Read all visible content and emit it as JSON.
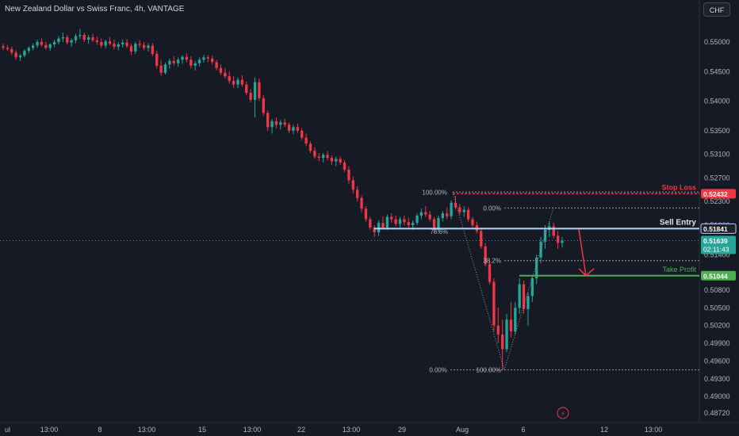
{
  "header": {
    "title": "New Zealand Dollar vs Swiss Franc, 4h, VANTAGE",
    "currency_button": "CHF"
  },
  "chart_data": {
    "type": "candlestick",
    "ylim": [
      0.4865,
      0.5546
    ],
    "y_ticks": [
      "0.55000",
      "0.54500",
      "0.54000",
      "0.53500",
      "0.53100",
      "0.52700",
      "0.52300",
      "0.51900",
      "0.51400",
      "0.50800",
      "0.50500",
      "0.50200",
      "0.49900",
      "0.49600",
      "0.49300",
      "0.49000",
      "0.48720"
    ],
    "x_ticks": [
      "ul",
      "13:00",
      "8",
      "13:00",
      "15",
      "13:00",
      "22",
      "13:00",
      "29",
      "Aug",
      "6",
      "12",
      "13:00"
    ],
    "price_labels": {
      "stop_loss": "0.52432",
      "sell_entry": "0.51841",
      "current": "0.51639",
      "countdown": "02:11:43",
      "take_profit": "0.51044"
    },
    "annotations": {
      "stop_loss": "Stop Loss",
      "sell_entry": "Sell Entry",
      "take_profit": "Take Profit"
    },
    "levels": {
      "stop_loss": 0.52432,
      "sell_entry": 0.51841,
      "current": 0.51639,
      "take_profit": 0.51044
    },
    "fib_upper": {
      "labels": [
        "100.00%",
        "0.00%",
        "78.6%"
      ],
      "high": 0.5246,
      "low": 0.4945
    },
    "fib_lower": {
      "labels": [
        "38.2%",
        "0.00%",
        "100.00%"
      ]
    },
    "colors": {
      "up": "#26a69a",
      "down": "#f23645",
      "entry": "#b2d5ff",
      "take_profit": "#4caf50",
      "background": "#161a25"
    },
    "candles": [
      [
        0.5493,
        0.5497,
        0.5486,
        0.549
      ],
      [
        0.549,
        0.5495,
        0.5485,
        0.5488
      ],
      [
        0.5488,
        0.5492,
        0.5478,
        0.5482
      ],
      [
        0.5482,
        0.5486,
        0.547,
        0.5474
      ],
      [
        0.5474,
        0.548,
        0.5468,
        0.5477
      ],
      [
        0.5477,
        0.5488,
        0.5474,
        0.5485
      ],
      [
        0.5485,
        0.5493,
        0.5481,
        0.549
      ],
      [
        0.549,
        0.5498,
        0.5486,
        0.5494
      ],
      [
        0.5494,
        0.5504,
        0.549,
        0.55
      ],
      [
        0.55,
        0.5506,
        0.5492,
        0.5495
      ],
      [
        0.5495,
        0.55,
        0.5487,
        0.549
      ],
      [
        0.549,
        0.5498,
        0.5485,
        0.5496
      ],
      [
        0.5496,
        0.5504,
        0.5491,
        0.55
      ],
      [
        0.55,
        0.551,
        0.5496,
        0.5506
      ],
      [
        0.5506,
        0.5516,
        0.55,
        0.5508
      ],
      [
        0.5508,
        0.5512,
        0.5496,
        0.5499
      ],
      [
        0.5499,
        0.5506,
        0.5492,
        0.5503
      ],
      [
        0.5503,
        0.5514,
        0.5498,
        0.551
      ],
      [
        0.551,
        0.5522,
        0.5505,
        0.5512
      ],
      [
        0.5512,
        0.5516,
        0.55,
        0.5504
      ],
      [
        0.5504,
        0.5512,
        0.5497,
        0.5508
      ],
      [
        0.5508,
        0.5514,
        0.55,
        0.5503
      ],
      [
        0.5503,
        0.5509,
        0.5495,
        0.55
      ],
      [
        0.55,
        0.5506,
        0.549,
        0.5494
      ],
      [
        0.5494,
        0.5504,
        0.5489,
        0.5501
      ],
      [
        0.5501,
        0.5508,
        0.5494,
        0.5497
      ],
      [
        0.5497,
        0.5504,
        0.5488,
        0.5492
      ],
      [
        0.5492,
        0.55,
        0.5486,
        0.5496
      ],
      [
        0.5496,
        0.5504,
        0.5491,
        0.5499
      ],
      [
        0.5499,
        0.5505,
        0.549,
        0.5493
      ],
      [
        0.5493,
        0.5497,
        0.5478,
        0.5484
      ],
      [
        0.5484,
        0.55,
        0.548,
        0.5497
      ],
      [
        0.5497,
        0.5503,
        0.549,
        0.5495
      ],
      [
        0.5495,
        0.55,
        0.5486,
        0.549
      ],
      [
        0.549,
        0.5498,
        0.5484,
        0.5494
      ],
      [
        0.5494,
        0.5498,
        0.5476,
        0.548
      ],
      [
        0.548,
        0.5485,
        0.5455,
        0.546
      ],
      [
        0.546,
        0.547,
        0.5443,
        0.5448
      ],
      [
        0.5448,
        0.5465,
        0.5445,
        0.5462
      ],
      [
        0.5462,
        0.5472,
        0.5455,
        0.5468
      ],
      [
        0.5468,
        0.5476,
        0.546,
        0.5464
      ],
      [
        0.5464,
        0.5474,
        0.5458,
        0.547
      ],
      [
        0.547,
        0.5478,
        0.5463,
        0.5475
      ],
      [
        0.5475,
        0.5481,
        0.5466,
        0.547
      ],
      [
        0.547,
        0.5476,
        0.5455,
        0.546
      ],
      [
        0.546,
        0.5468,
        0.5452,
        0.5464
      ],
      [
        0.5464,
        0.5474,
        0.5459,
        0.547
      ],
      [
        0.547,
        0.5478,
        0.5465,
        0.5474
      ],
      [
        0.5474,
        0.5478,
        0.5466,
        0.5472
      ],
      [
        0.5472,
        0.5477,
        0.5462,
        0.5466
      ],
      [
        0.5466,
        0.547,
        0.5452,
        0.5456
      ],
      [
        0.5456,
        0.5462,
        0.5444,
        0.5448
      ],
      [
        0.5448,
        0.5456,
        0.5438,
        0.5442
      ],
      [
        0.5442,
        0.545,
        0.543,
        0.5434
      ],
      [
        0.5434,
        0.5442,
        0.5422,
        0.5428
      ],
      [
        0.5428,
        0.544,
        0.5422,
        0.5436
      ],
      [
        0.5436,
        0.5444,
        0.5424,
        0.5428
      ],
      [
        0.5428,
        0.5433,
        0.541,
        0.5414
      ],
      [
        0.5414,
        0.542,
        0.5398,
        0.5402
      ],
      [
        0.5402,
        0.544,
        0.5372,
        0.5432
      ],
      [
        0.5432,
        0.5438,
        0.54,
        0.5405
      ],
      [
        0.5405,
        0.541,
        0.5375,
        0.538
      ],
      [
        0.538,
        0.5384,
        0.535,
        0.5356
      ],
      [
        0.5356,
        0.537,
        0.5345,
        0.5366
      ],
      [
        0.5366,
        0.5372,
        0.5354,
        0.536
      ],
      [
        0.536,
        0.5368,
        0.5352,
        0.5364
      ],
      [
        0.5364,
        0.537,
        0.5356,
        0.536
      ],
      [
        0.536,
        0.5364,
        0.5346,
        0.535
      ],
      [
        0.535,
        0.536,
        0.5344,
        0.5356
      ],
      [
        0.5356,
        0.5362,
        0.5346,
        0.535
      ],
      [
        0.535,
        0.5354,
        0.5334,
        0.5338
      ],
      [
        0.5338,
        0.5345,
        0.5324,
        0.5328
      ],
      [
        0.5328,
        0.5332,
        0.5312,
        0.5316
      ],
      [
        0.5316,
        0.5322,
        0.5302,
        0.5306
      ],
      [
        0.5306,
        0.5312,
        0.5298,
        0.5304
      ],
      [
        0.5304,
        0.5312,
        0.5296,
        0.5309
      ],
      [
        0.5309,
        0.5315,
        0.53,
        0.5304
      ],
      [
        0.5304,
        0.5308,
        0.5292,
        0.5298
      ],
      [
        0.5298,
        0.5306,
        0.529,
        0.5302
      ],
      [
        0.5302,
        0.5306,
        0.5292,
        0.5296
      ],
      [
        0.5296,
        0.53,
        0.528,
        0.5284
      ],
      [
        0.5284,
        0.529,
        0.526,
        0.5266
      ],
      [
        0.5266,
        0.5272,
        0.5244,
        0.525
      ],
      [
        0.525,
        0.5256,
        0.523,
        0.5236
      ],
      [
        0.5236,
        0.524,
        0.5212,
        0.5218
      ],
      [
        0.5218,
        0.5222,
        0.5196,
        0.52
      ],
      [
        0.52,
        0.5204,
        0.5182,
        0.5186
      ],
      [
        0.5186,
        0.519,
        0.517,
        0.5178
      ],
      [
        0.5178,
        0.5198,
        0.5172,
        0.5194
      ],
      [
        0.5194,
        0.5205,
        0.5182,
        0.5186
      ],
      [
        0.5186,
        0.5208,
        0.5182,
        0.5204
      ],
      [
        0.5204,
        0.521,
        0.5194,
        0.52
      ],
      [
        0.52,
        0.5206,
        0.5188,
        0.5192
      ],
      [
        0.5192,
        0.5204,
        0.5186,
        0.52
      ],
      [
        0.52,
        0.5206,
        0.519,
        0.5195
      ],
      [
        0.5195,
        0.5202,
        0.5186,
        0.519
      ],
      [
        0.519,
        0.5198,
        0.5182,
        0.5194
      ],
      [
        0.5194,
        0.521,
        0.519,
        0.5206
      ],
      [
        0.5206,
        0.5218,
        0.52,
        0.5212
      ],
      [
        0.5212,
        0.5222,
        0.5204,
        0.5208
      ],
      [
        0.5208,
        0.5214,
        0.5196,
        0.52
      ],
      [
        0.52,
        0.5204,
        0.5178,
        0.5182
      ],
      [
        0.5182,
        0.5206,
        0.5178,
        0.5202
      ],
      [
        0.5202,
        0.5214,
        0.5196,
        0.521
      ],
      [
        0.521,
        0.522,
        0.52,
        0.5205
      ],
      [
        0.5205,
        0.5232,
        0.52,
        0.5228
      ],
      [
        0.5228,
        0.524,
        0.5216,
        0.522
      ],
      [
        0.522,
        0.5226,
        0.5208,
        0.5212
      ],
      [
        0.5212,
        0.5222,
        0.5204,
        0.5216
      ],
      [
        0.5216,
        0.522,
        0.5196,
        0.52
      ],
      [
        0.52,
        0.5204,
        0.5186,
        0.519
      ],
      [
        0.519,
        0.5196,
        0.5176,
        0.518
      ],
      [
        0.518,
        0.5186,
        0.515,
        0.5154
      ],
      [
        0.5154,
        0.516,
        0.512,
        0.5124
      ],
      [
        0.5124,
        0.513,
        0.509,
        0.5094
      ],
      [
        0.5094,
        0.51,
        0.501,
        0.502
      ],
      [
        0.502,
        0.505,
        0.499,
        0.5005
      ],
      [
        0.5005,
        0.503,
        0.4945,
        0.498
      ],
      [
        0.498,
        0.504,
        0.4975,
        0.503
      ],
      [
        0.503,
        0.506,
        0.5,
        0.501
      ],
      [
        0.501,
        0.506,
        0.5005,
        0.505
      ],
      [
        0.505,
        0.51,
        0.504,
        0.509
      ],
      [
        0.509,
        0.5096,
        0.504,
        0.5048
      ],
      [
        0.5048,
        0.5076,
        0.502,
        0.507
      ],
      [
        0.507,
        0.5105,
        0.506,
        0.51
      ],
      [
        0.51,
        0.514,
        0.509,
        0.5135
      ],
      [
        0.5135,
        0.517,
        0.5125,
        0.5162
      ],
      [
        0.5162,
        0.519,
        0.515,
        0.5182
      ],
      [
        0.5182,
        0.5196,
        0.517,
        0.5188
      ],
      [
        0.5188,
        0.5194,
        0.5168,
        0.5172
      ],
      [
        0.5172,
        0.518,
        0.515,
        0.516
      ],
      [
        0.516,
        0.517,
        0.5152,
        0.5164
      ]
    ]
  }
}
